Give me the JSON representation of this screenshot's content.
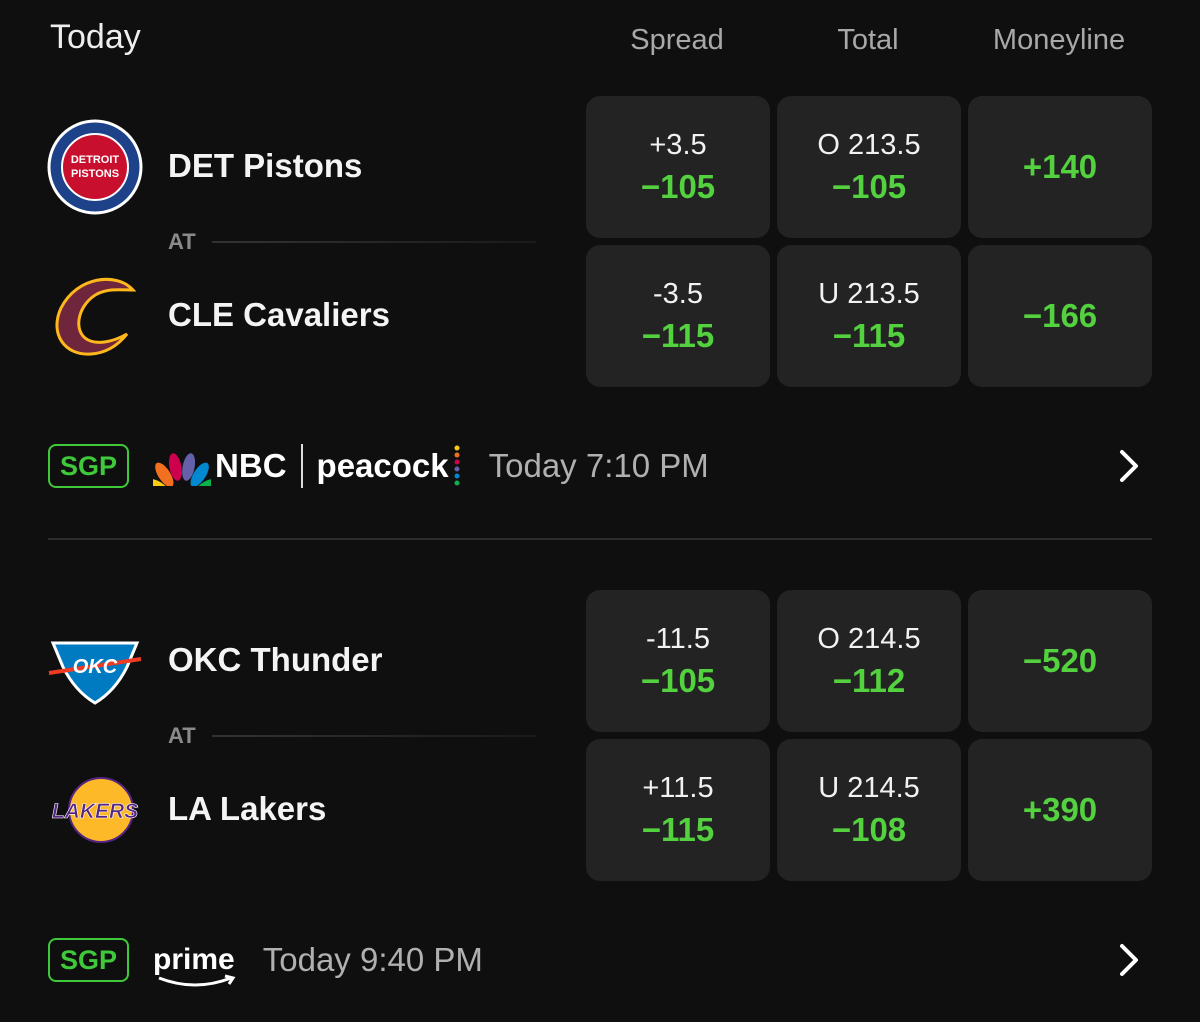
{
  "header": {
    "title": "Today",
    "columns": [
      "Spread",
      "Total",
      "Moneyline"
    ]
  },
  "games": [
    {
      "teams": [
        {
          "name": "DET Pistons",
          "logo_text": [
            "DETROIT",
            "PISTONS"
          ],
          "spread": "+3.5",
          "spread_odds": "−105",
          "total": "O 213.5",
          "total_odds": "−105",
          "moneyline": "+140"
        },
        {
          "name": "CLE Cavaliers",
          "spread": "-3.5",
          "spread_odds": "−115",
          "total": "U 213.5",
          "total_odds": "−115",
          "moneyline": "−166"
        }
      ],
      "separator": "AT",
      "badge": "SGP",
      "broadcast": [
        "NBC",
        "peacock"
      ],
      "time": "Today 7:10 PM"
    },
    {
      "teams": [
        {
          "name": "OKC Thunder",
          "logo_text": [
            "OKC"
          ],
          "spread": "-11.5",
          "spread_odds": "−105",
          "total": "O 214.5",
          "total_odds": "−112",
          "moneyline": "−520"
        },
        {
          "name": "LA Lakers",
          "logo_text": [
            "LAKERS"
          ],
          "spread": "+11.5",
          "spread_odds": "−115",
          "total": "U 214.5",
          "total_odds": "−108",
          "moneyline": "+390"
        }
      ],
      "separator": "AT",
      "badge": "SGP",
      "broadcast": [
        "prime"
      ],
      "time": "Today 9:40 PM"
    }
  ]
}
